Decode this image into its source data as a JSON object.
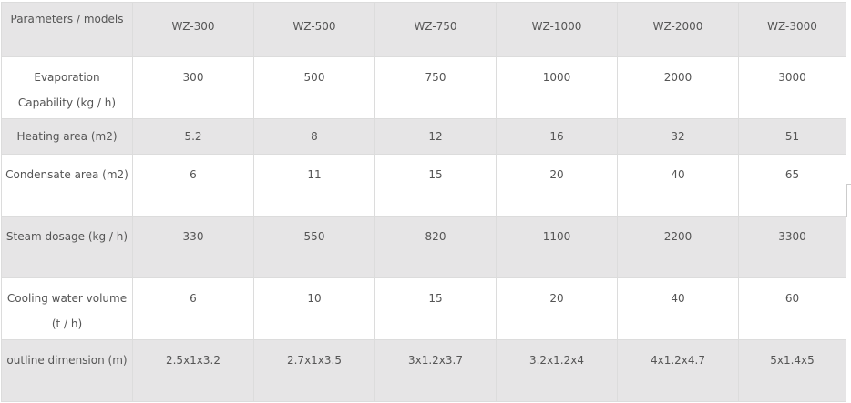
{
  "table": {
    "header": [
      "Parameters / models",
      "WZ-300",
      "WZ-500",
      "WZ-750",
      "WZ-1000",
      "WZ-2000",
      "WZ-3000"
    ],
    "rows": [
      {
        "label": "Evaporation Capability (kg / h)",
        "values": [
          "300",
          "500",
          "750",
          "1000",
          "2000",
          "3000"
        ]
      },
      {
        "label": "Heating area (m2)",
        "values": [
          "5.2",
          "8",
          "12",
          "16",
          "32",
          "51"
        ]
      },
      {
        "label": "Condensate area (m2)",
        "values": [
          "6",
          "11",
          "15",
          "20",
          "40",
          "65"
        ]
      },
      {
        "label": "Steam dosage (kg / h)",
        "values": [
          "330",
          "550",
          "820",
          "1100",
          "2200",
          "3300"
        ]
      },
      {
        "label": "Cooling water volume (t / h)",
        "values": [
          "6",
          "10",
          "15",
          "20",
          "40",
          "60"
        ]
      },
      {
        "label": "outline dimension (m)",
        "values": [
          "2.5x1x3.2",
          "2.7x1x3.5",
          "3x1.2x3.7",
          "3.2x1.2x4",
          "4x1.2x4.7",
          "5x1.4x5"
        ]
      }
    ]
  },
  "colors": {
    "row_gray": "#e6e5e6",
    "text": "#555555",
    "border": "#dcdcdc"
  }
}
